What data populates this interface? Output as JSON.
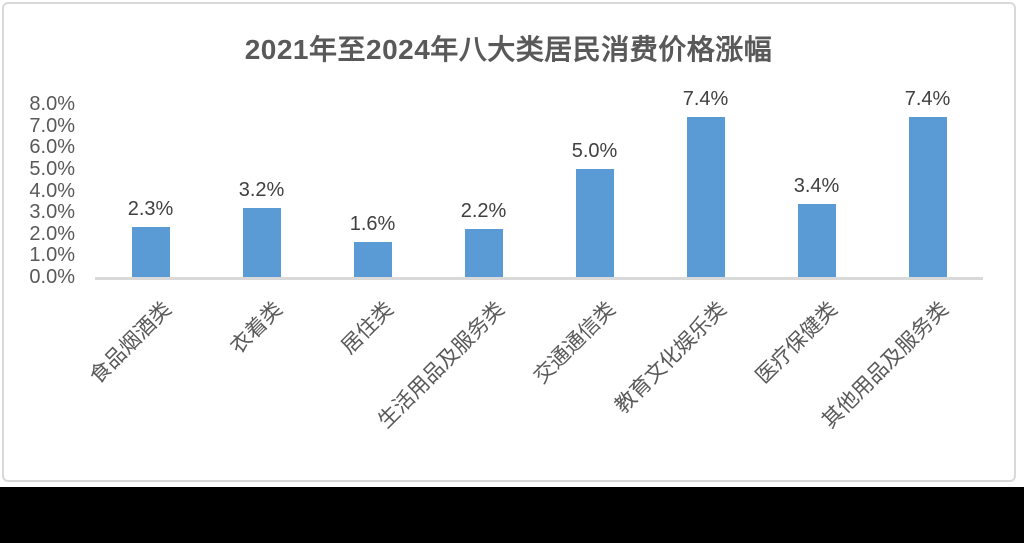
{
  "chart_data": {
    "type": "bar",
    "title": "2021年至2024年八大类居民消费价格涨幅",
    "categories": [
      "食品烟酒类",
      "衣着类",
      "居住类",
      "生活用品及服务类",
      "交通通信类",
      "教育文化娱乐类",
      "医疗保健类",
      "其他用品及服务类"
    ],
    "values": [
      2.3,
      3.2,
      1.6,
      2.2,
      5.0,
      7.4,
      3.4,
      7.4
    ],
    "data_labels": [
      "2.3%",
      "3.2%",
      "1.6%",
      "2.2%",
      "5.0%",
      "7.4%",
      "3.4%",
      "7.4%"
    ],
    "y_ticks": [
      "8.0%",
      "7.0%",
      "6.0%",
      "5.0%",
      "4.0%",
      "3.0%",
      "2.0%",
      "1.0%",
      "0.0%"
    ],
    "xlabel": "",
    "ylabel": "",
    "ylim": [
      0,
      8
    ],
    "grid": false,
    "legend": "none",
    "colors": {
      "bar": "#5b9bd5",
      "title": "#595959",
      "tick_label": "#595959",
      "data_label": "#404040",
      "axis_line": "#d9d9d9",
      "frame_border": "#d9d9d9",
      "bottom_band": "#000000"
    }
  }
}
